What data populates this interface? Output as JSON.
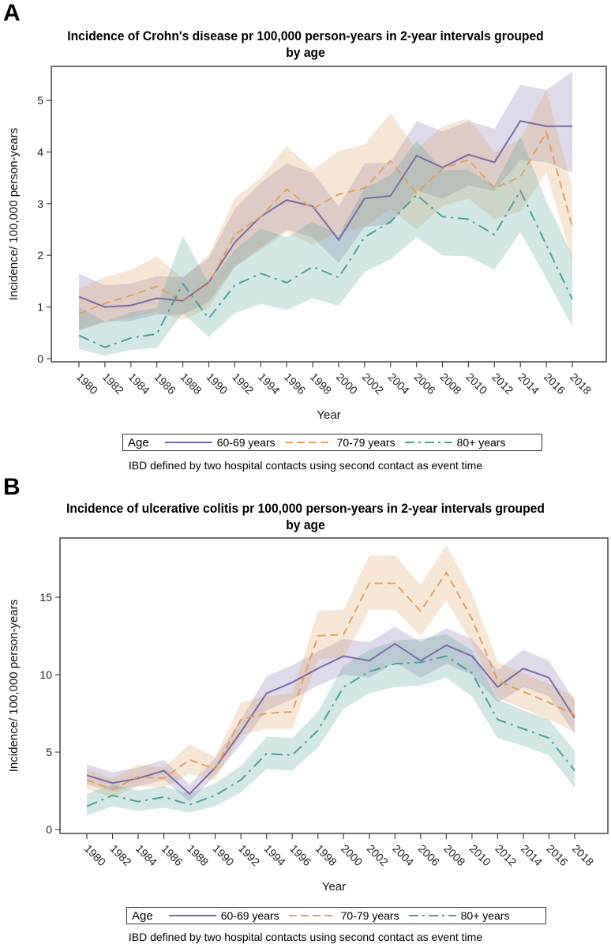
{
  "legend_title": "Age",
  "footnote": "IBD defined by two hospital contacts using second contact as event time",
  "colors": {
    "60-69 years": "#7b6aa6",
    "70-79 years": "#e0a15f",
    "80+ years": "#4e9e98"
  },
  "chart_data": [
    {
      "panel": "A",
      "type": "line",
      "title": "Incidence of Crohn's disease pr 100,000 person-years  in 2-year intervals grouped by age",
      "xlabel": "Year",
      "ylabel": "Incidence/ 100,000 person-years",
      "ylim": [
        0,
        5.5
      ],
      "yticks": [
        0,
        1,
        2,
        3,
        4,
        5
      ],
      "grid": false,
      "legend_position": "bottom",
      "x": [
        1980,
        1982,
        1984,
        1986,
        1988,
        1990,
        1992,
        1994,
        1996,
        1998,
        2000,
        2002,
        2004,
        2006,
        2008,
        2010,
        2012,
        2014,
        2016,
        2018
      ],
      "series": [
        {
          "name": "60-69 years",
          "values": [
            1.2,
            1.0,
            1.03,
            1.17,
            1.12,
            1.48,
            2.25,
            2.75,
            3.07,
            2.95,
            2.3,
            3.1,
            3.15,
            3.93,
            3.7,
            3.95,
            3.8,
            4.6,
            4.5,
            4.5
          ],
          "lower": [
            0.55,
            0.72,
            0.73,
            0.85,
            0.85,
            1.1,
            1.78,
            2.15,
            2.5,
            2.35,
            1.85,
            2.55,
            2.6,
            3.25,
            3.1,
            3.35,
            3.25,
            3.85,
            3.8,
            3.6
          ],
          "upper": [
            1.65,
            1.42,
            1.45,
            1.6,
            1.58,
            1.95,
            2.9,
            3.4,
            3.78,
            3.6,
            2.95,
            3.78,
            3.8,
            4.6,
            4.4,
            4.6,
            4.45,
            5.3,
            5.2,
            5.55
          ]
        },
        {
          "name": "70-79 years",
          "values": [
            0.87,
            1.07,
            1.22,
            1.4,
            1.1,
            1.45,
            2.4,
            2.75,
            3.28,
            2.9,
            3.18,
            3.3,
            3.83,
            3.2,
            3.68,
            3.85,
            3.3,
            3.52,
            4.38,
            2.55
          ],
          "lower": [
            0.55,
            0.7,
            0.8,
            0.9,
            0.75,
            0.98,
            1.78,
            2.1,
            2.45,
            2.2,
            2.45,
            2.55,
            2.9,
            2.5,
            2.95,
            3.1,
            2.7,
            2.85,
            3.6,
            1.9
          ],
          "upper": [
            1.35,
            1.58,
            1.72,
            1.98,
            1.55,
            2.02,
            3.1,
            3.5,
            4.12,
            3.65,
            4.02,
            4.15,
            4.75,
            4.05,
            4.5,
            4.65,
            4.0,
            4.25,
            5.2,
            3.3
          ]
        },
        {
          "name": "80+ years",
          "values": [
            0.45,
            0.22,
            0.4,
            0.48,
            1.45,
            0.78,
            1.42,
            1.65,
            1.47,
            1.78,
            1.57,
            2.35,
            2.65,
            3.17,
            2.75,
            2.7,
            2.4,
            3.25,
            2.2,
            1.15
          ],
          "lower": [
            0.18,
            0.06,
            0.17,
            0.21,
            0.88,
            0.42,
            0.88,
            1.06,
            0.94,
            1.17,
            1.02,
            1.68,
            1.92,
            2.35,
            2.0,
            1.98,
            1.72,
            2.45,
            1.55,
            0.62
          ],
          "upper": [
            1.0,
            0.72,
            0.9,
            0.98,
            2.38,
            1.45,
            2.1,
            2.52,
            2.35,
            2.65,
            2.4,
            3.3,
            3.55,
            4.22,
            3.65,
            3.65,
            3.35,
            4.3,
            3.05,
            2.0
          ]
        }
      ]
    },
    {
      "panel": "B",
      "type": "line",
      "title": "Incidence of ulcerative colitis pr 100,000 person-years in 2-year intervals grouped by age",
      "xlabel": "Year",
      "ylabel": "Incidence/ 100,000 person-years",
      "ylim": [
        0,
        19
      ],
      "yticks": [
        0,
        5,
        10,
        15
      ],
      "grid": false,
      "legend_position": "bottom",
      "x": [
        1980,
        1982,
        1984,
        1986,
        1988,
        1990,
        1992,
        1994,
        1996,
        1998,
        2000,
        2002,
        2004,
        2006,
        2008,
        2010,
        2012,
        2014,
        2016,
        2018
      ],
      "series": [
        {
          "name": "60-69 years",
          "values": [
            3.5,
            3.0,
            3.3,
            3.8,
            2.3,
            4.0,
            6.3,
            8.8,
            9.5,
            10.4,
            11.2,
            10.9,
            12.0,
            10.9,
            11.9,
            11.2,
            9.2,
            10.4,
            9.8,
            7.2
          ],
          "lower": [
            2.9,
            2.5,
            2.8,
            3.2,
            1.8,
            3.5,
            5.5,
            7.7,
            8.4,
            9.3,
            10.0,
            9.8,
            10.8,
            9.8,
            10.7,
            10.0,
            8.2,
            9.2,
            8.6,
            6.2
          ],
          "upper": [
            4.2,
            3.7,
            4.0,
            4.5,
            2.9,
            4.6,
            7.1,
            9.9,
            10.6,
            11.5,
            12.3,
            12.1,
            13.1,
            12.1,
            13.0,
            12.3,
            10.3,
            11.6,
            10.9,
            8.3
          ]
        },
        {
          "name": "70-79 years",
          "values": [
            3.2,
            2.6,
            3.4,
            3.3,
            4.5,
            3.9,
            7.1,
            7.5,
            7.6,
            12.5,
            12.6,
            15.9,
            15.9,
            14.1,
            16.6,
            13.6,
            9.6,
            8.9,
            8.2,
            7.4
          ],
          "lower": [
            2.6,
            2.1,
            2.8,
            2.7,
            3.6,
            3.2,
            6.1,
            6.5,
            6.5,
            11.0,
            11.1,
            14.2,
            14.2,
            12.5,
            14.8,
            12.0,
            8.5,
            7.8,
            7.1,
            6.3
          ],
          "upper": [
            3.9,
            3.3,
            4.2,
            4.0,
            5.5,
            4.7,
            8.2,
            8.6,
            8.8,
            14.1,
            14.2,
            17.7,
            17.7,
            15.8,
            18.4,
            15.3,
            10.8,
            10.1,
            9.4,
            8.6
          ]
        },
        {
          "name": "80+ years",
          "values": [
            1.5,
            2.2,
            1.8,
            2.1,
            1.6,
            2.2,
            3.2,
            4.9,
            4.8,
            6.4,
            9.2,
            10.2,
            10.7,
            10.8,
            11.2,
            10.1,
            7.1,
            6.5,
            5.9,
            3.8
          ],
          "lower": [
            0.9,
            1.5,
            1.2,
            1.4,
            1.1,
            1.5,
            2.4,
            3.9,
            3.8,
            5.3,
            7.8,
            8.8,
            9.2,
            9.3,
            9.8,
            8.6,
            5.9,
            5.4,
            4.8,
            2.7
          ],
          "upper": [
            2.3,
            2.9,
            2.5,
            2.8,
            2.3,
            3.0,
            4.1,
            6.0,
            5.9,
            7.6,
            10.6,
            11.6,
            12.2,
            12.3,
            12.6,
            11.6,
            8.4,
            7.7,
            7.1,
            5.1
          ]
        }
      ]
    }
  ],
  "panels": [
    {
      "letter": "A",
      "title_line1": "Incidence of Crohn's disease pr 100,000 person-years  in 2-year intervals grouped",
      "title_line2": "by age"
    },
    {
      "letter": "B",
      "title_line1": "Incidence of ulcerative colitis pr 100,000 person-years in 2-year intervals grouped",
      "title_line2": "by age"
    }
  ],
  "legend_items": [
    "60-69 years",
    "70-79 years",
    "80+ years"
  ]
}
